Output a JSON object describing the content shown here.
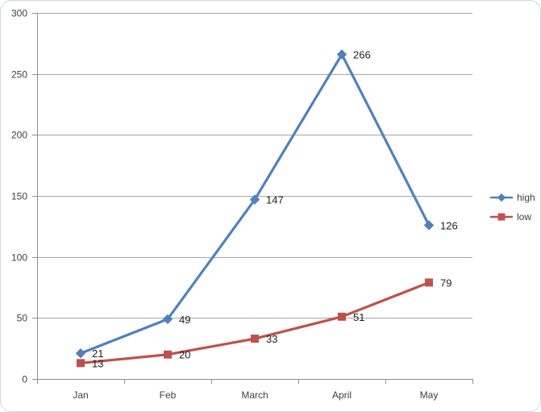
{
  "chart": {
    "frame_border_color": "#cdd6dd",
    "background": "#ffffff"
  },
  "chart_data": {
    "type": "line",
    "title": "",
    "categories": [
      "Jan",
      "Feb",
      "March",
      "April",
      "May"
    ],
    "series": [
      {
        "name": "high",
        "color": "#4F81BD",
        "marker": "diamond",
        "values": [
          21,
          49,
          147,
          266,
          126
        ]
      },
      {
        "name": "low",
        "color": "#C0504D",
        "marker": "square",
        "values": [
          13,
          20,
          33,
          51,
          79
        ]
      }
    ],
    "ylim": [
      0,
      300
    ],
    "yticks": [
      0,
      50,
      100,
      150,
      200,
      250,
      300
    ],
    "ytick_labels": [
      "0",
      "50",
      "100",
      "150",
      "200",
      "250",
      "300"
    ],
    "grid": true,
    "gridline_color": "#a6a6a6",
    "axis_color": "#8e8e8e",
    "tick_label_color": "#3f3f3f",
    "data_label_color": "#1f1f1f",
    "data_labels": true,
    "legend_position": "right",
    "legend": [
      "high",
      "low"
    ]
  }
}
